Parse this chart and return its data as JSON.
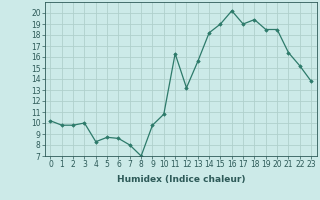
{
  "x": [
    0,
    1,
    2,
    3,
    4,
    5,
    6,
    7,
    8,
    9,
    10,
    11,
    12,
    13,
    14,
    15,
    16,
    17,
    18,
    19,
    20,
    21,
    22,
    23
  ],
  "y": [
    10.2,
    9.8,
    9.8,
    10.0,
    8.3,
    8.7,
    8.6,
    8.0,
    7.0,
    9.8,
    10.8,
    16.3,
    13.2,
    15.6,
    18.2,
    19.0,
    20.2,
    19.0,
    19.4,
    18.5,
    18.5,
    16.4,
    15.2,
    13.8
  ],
  "xlabel": "Humidex (Indice chaleur)",
  "ylim": [
    7,
    21
  ],
  "xlim": [
    -0.5,
    23.5
  ],
  "yticks": [
    7,
    8,
    9,
    10,
    11,
    12,
    13,
    14,
    15,
    16,
    17,
    18,
    19,
    20
  ],
  "xticks": [
    0,
    1,
    2,
    3,
    4,
    5,
    6,
    7,
    8,
    9,
    10,
    11,
    12,
    13,
    14,
    15,
    16,
    17,
    18,
    19,
    20,
    21,
    22,
    23
  ],
  "line_color": "#2d7a6a",
  "marker": "D",
  "marker_size": 1.8,
  "bg_color": "#cceae8",
  "grid_color": "#b0d0cc",
  "tick_fontsize": 5.5,
  "xlabel_fontsize": 6.5,
  "line_width": 0.9
}
